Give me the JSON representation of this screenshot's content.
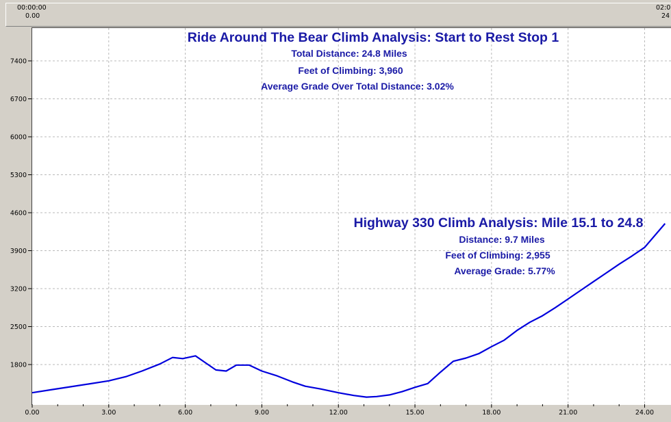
{
  "top_strip": {
    "left_time": "00:00:00",
    "left_dist": "0.00",
    "right_time": "02:0",
    "right_dist": "24"
  },
  "colors": {
    "line": "#0000dd",
    "annotation": "#1a1aa6",
    "grid": "#b8b8b8",
    "background": "#ffffff",
    "frame": "#d4d0c8"
  },
  "annotations": {
    "overall": {
      "title": "Ride Around The Bear Climb Analysis: Start to Rest Stop 1",
      "line1": "Total Distance: 24.8 Miles",
      "line2": "Feet of Climbing: 3,960",
      "line3": "Average Grade Over Total Distance: 3.02%"
    },
    "segment": {
      "title": "Highway 330 Climb Analysis: Mile 15.1 to 24.8",
      "line1": "Distance: 9.7 Miles",
      "line2": "Feet of Climbing: 2,955",
      "line3": "Average Grade: 5.77%"
    }
  },
  "chart_data": {
    "type": "line",
    "title": "Ride Around The Bear Climb Analysis: Start to Rest Stop 1",
    "xlabel": "",
    "ylabel": "",
    "xlim": [
      0,
      24.8
    ],
    "ylim": [
      1100,
      8000
    ],
    "grid": true,
    "x_ticks": [
      "0.00",
      "3.00",
      "6.00",
      "9.00",
      "12.00",
      "15.00",
      "18.00",
      "21.00",
      "24.00"
    ],
    "x_tick_values": [
      0,
      3,
      6,
      9,
      12,
      15,
      18,
      21,
      24
    ],
    "y_ticks": [
      "1800",
      "2500",
      "3200",
      "3900",
      "4600",
      "5300",
      "6000",
      "6700",
      "7400"
    ],
    "y_tick_values": [
      1800,
      2500,
      3200,
      3900,
      4600,
      5300,
      6000,
      6700,
      7400
    ],
    "series": [
      {
        "x": [
          0,
          0.8,
          1.5,
          2.2,
          3.0,
          3.7,
          4.3,
          5.0,
          5.5,
          5.9,
          6.4,
          6.8,
          7.2,
          7.6,
          8.0,
          8.5,
          9.0,
          9.6,
          10.2,
          10.7,
          11.3,
          12.0,
          12.6,
          13.1,
          13.5,
          14.0,
          14.5,
          15.0,
          15.5,
          16.0,
          16.5,
          17.0,
          17.5,
          18.0,
          18.5,
          19.0,
          19.5,
          20.0,
          20.5,
          21.0,
          21.5,
          22.0,
          22.5,
          23.0,
          23.5,
          24.0,
          24.8
        ],
        "values": [
          1280,
          1340,
          1390,
          1440,
          1500,
          1580,
          1680,
          1810,
          1930,
          1910,
          1960,
          1830,
          1700,
          1680,
          1790,
          1790,
          1680,
          1590,
          1480,
          1400,
          1350,
          1280,
          1230,
          1200,
          1210,
          1240,
          1300,
          1380,
          1450,
          1660,
          1860,
          1920,
          2000,
          2130,
          2250,
          2430,
          2580,
          2700,
          2850,
          3010,
          3170,
          3330,
          3490,
          3650,
          3800,
          3960,
          4400
        ]
      }
    ]
  }
}
